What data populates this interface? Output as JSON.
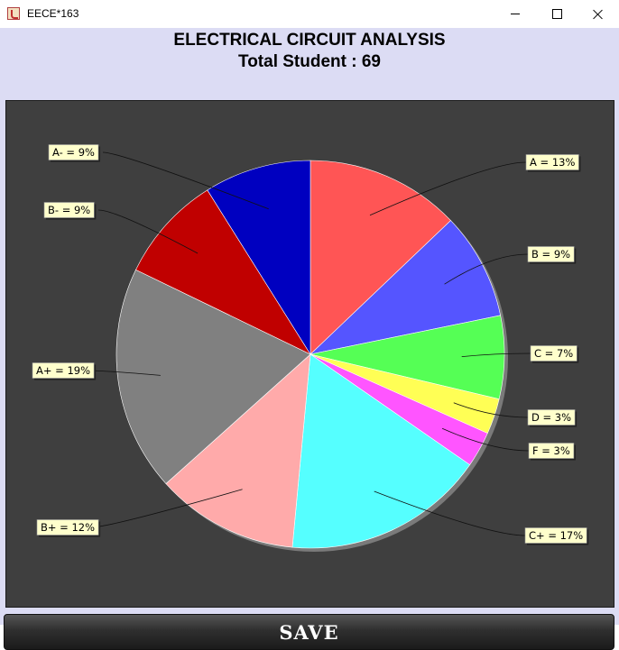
{
  "window": {
    "title": "EECE*163"
  },
  "chart_data": {
    "type": "pie",
    "title": "ELECTRICAL CIRCUIT ANALYSIS",
    "subtitle": "Total Student : 69",
    "slices": [
      {
        "label": "A = 13%",
        "value": 13,
        "color": "#ff5555"
      },
      {
        "label": "B = 9%",
        "value": 9,
        "color": "#5555ff"
      },
      {
        "label": "C = 7%",
        "value": 7,
        "color": "#55ff55"
      },
      {
        "label": "D = 3%",
        "value": 3,
        "color": "#ffff55"
      },
      {
        "label": "F = 3%",
        "value": 3,
        "color": "#ff55ff"
      },
      {
        "label": "C+ = 17%",
        "value": 17,
        "color": "#55ffff"
      },
      {
        "label": "B+ = 12%",
        "value": 12,
        "color": "#ffaaaa"
      },
      {
        "label": "A+ = 19%",
        "value": 19,
        "color": "#808080"
      },
      {
        "label": "B- = 9%",
        "value": 9,
        "color": "#c00000"
      },
      {
        "label": "A- = 9%",
        "value": 9,
        "color": "#0000c0"
      }
    ],
    "start": "12 o'clock",
    "direction": "clockwise",
    "background": "#3f3f3f",
    "label_background": "#ffffcc"
  },
  "footer": {
    "save_label": "SAVE"
  }
}
